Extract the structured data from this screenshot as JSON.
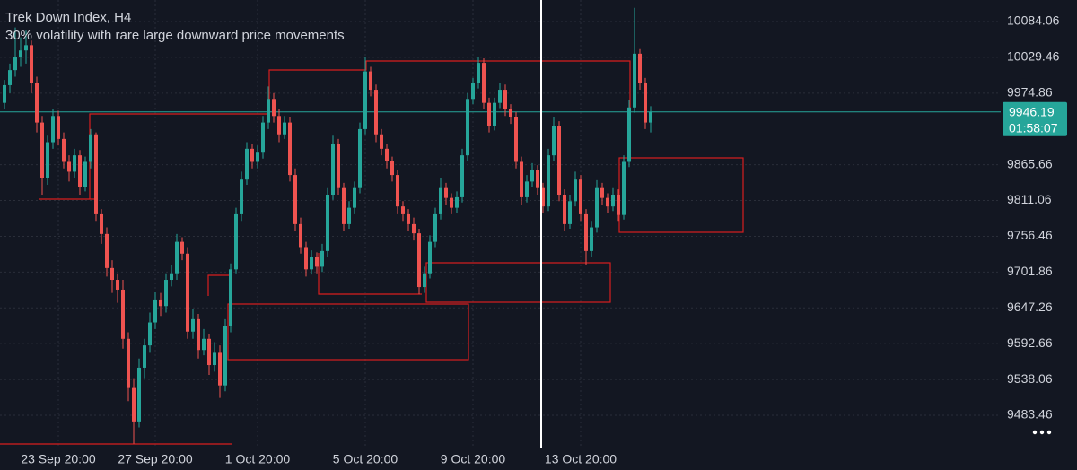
{
  "chart_data": {
    "type": "candlestick",
    "title": "Trek Down Index, H4",
    "subtitle": "30% volatility with rare large downward price movements",
    "up_color": "#26a69a",
    "down_color": "#ef5350",
    "grid": true,
    "ylim": [
      9432.8,
      10116.9
    ],
    "yticks": [
      {
        "value": 10084.06,
        "label": "10084.06"
      },
      {
        "value": 10029.46,
        "label": "10029.46"
      },
      {
        "value": 9974.86,
        "label": "9974.86"
      },
      {
        "value": 9865.66,
        "label": "9865.66"
      },
      {
        "value": 9811.06,
        "label": "9811.06"
      },
      {
        "value": 9756.46,
        "label": "9756.46"
      },
      {
        "value": 9701.86,
        "label": "9701.86"
      },
      {
        "value": 9647.26,
        "label": "9647.26"
      },
      {
        "value": 9592.66,
        "label": "9592.66"
      },
      {
        "value": 9538.06,
        "label": "9538.06"
      },
      {
        "value": 9483.46,
        "label": "9483.46"
      }
    ],
    "last_price": 9946.19,
    "countdown": "01:58:07",
    "categories": [
      null,
      null,
      null,
      null,
      null,
      null,
      null,
      null,
      null,
      null,
      "23 Sep 20:00",
      null,
      null,
      null,
      null,
      null,
      null,
      null,
      null,
      null,
      null,
      null,
      null,
      null,
      null,
      null,
      null,
      null,
      "27 Sep 20:00",
      null,
      null,
      null,
      null,
      null,
      null,
      null,
      null,
      null,
      null,
      null,
      null,
      null,
      null,
      null,
      null,
      null,
      null,
      "1 Oct 20:00",
      null,
      null,
      null,
      null,
      null,
      null,
      null,
      null,
      null,
      null,
      null,
      null,
      null,
      null,
      null,
      null,
      null,
      null,
      null,
      "5 Oct 20:00",
      null,
      null,
      null,
      null,
      null,
      null,
      null,
      null,
      null,
      null,
      null,
      null,
      null,
      null,
      null,
      null,
      null,
      null,
      null,
      "9 Oct 20:00",
      null,
      null,
      null,
      null,
      null,
      null,
      null,
      null,
      null,
      null,
      null,
      null,
      null,
      null,
      null,
      null,
      null,
      null,
      null,
      "13 Oct 20:00",
      null,
      null,
      null,
      null,
      null,
      null,
      null,
      null,
      null,
      null,
      null,
      null,
      null
    ],
    "candles": [
      [
        9960,
        9995,
        9950,
        9987
      ],
      [
        9987,
        10020,
        9975,
        10010
      ],
      [
        10010,
        10075,
        10000,
        10030
      ],
      [
        10030,
        10060,
        10015,
        10040
      ],
      [
        10040,
        10070,
        10020,
        10048
      ],
      [
        10048,
        10055,
        9975,
        9990
      ],
      [
        9990,
        10000,
        9915,
        9930
      ],
      [
        9930,
        9940,
        9820,
        9845
      ],
      [
        9845,
        9910,
        9835,
        9900
      ],
      [
        9900,
        9950,
        9890,
        9940
      ],
      [
        9940,
        9948,
        9895,
        9905
      ],
      [
        9905,
        9915,
        9860,
        9870
      ],
      [
        9870,
        9880,
        9840,
        9855
      ],
      [
        9855,
        9890,
        9845,
        9880
      ],
      [
        9880,
        9888,
        9820,
        9832
      ],
      [
        9832,
        9878,
        9825,
        9870
      ],
      [
        9870,
        9920,
        9860,
        9912
      ],
      [
        9912,
        9915,
        9780,
        9790
      ],
      [
        9790,
        9798,
        9745,
        9760
      ],
      [
        9760,
        9770,
        9695,
        9708
      ],
      [
        9708,
        9720,
        9670,
        9690
      ],
      [
        9690,
        9700,
        9655,
        9675
      ],
      [
        9675,
        9690,
        9585,
        9600
      ],
      [
        9600,
        9610,
        9505,
        9525
      ],
      [
        9525,
        9540,
        9440,
        9474
      ],
      [
        9474,
        9570,
        9465,
        9556
      ],
      [
        9556,
        9600,
        9540,
        9590
      ],
      [
        9590,
        9640,
        9580,
        9625
      ],
      [
        9625,
        9672,
        9615,
        9660
      ],
      [
        9660,
        9670,
        9635,
        9650
      ],
      [
        9650,
        9700,
        9640,
        9690
      ],
      [
        9690,
        9712,
        9680,
        9700
      ],
      [
        9700,
        9760,
        9690,
        9748
      ],
      [
        9748,
        9755,
        9720,
        9730
      ],
      [
        9730,
        9740,
        9600,
        9611
      ],
      [
        9611,
        9645,
        9600,
        9630
      ],
      [
        9630,
        9638,
        9570,
        9583
      ],
      [
        9583,
        9615,
        9575,
        9600
      ],
      [
        9600,
        9608,
        9545,
        9560
      ],
      [
        9560,
        9595,
        9550,
        9580
      ],
      [
        9580,
        9590,
        9510,
        9529
      ],
      [
        9529,
        9630,
        9520,
        9620
      ],
      [
        9620,
        9715,
        9610,
        9706
      ],
      [
        9706,
        9800,
        9700,
        9790
      ],
      [
        9790,
        9855,
        9780,
        9843
      ],
      [
        9843,
        9900,
        9835,
        9890
      ],
      [
        9890,
        9898,
        9860,
        9870
      ],
      [
        9870,
        9895,
        9860,
        9884
      ],
      [
        9884,
        9940,
        9875,
        9930
      ],
      [
        9930,
        9985,
        9920,
        9966
      ],
      [
        9966,
        9975,
        9930,
        9940
      ],
      [
        9940,
        9950,
        9900,
        9912
      ],
      [
        9912,
        9940,
        9905,
        9930
      ],
      [
        9930,
        9938,
        9840,
        9850
      ],
      [
        9850,
        9860,
        9765,
        9775
      ],
      [
        9775,
        9785,
        9730,
        9740
      ],
      [
        9740,
        9748,
        9695,
        9706
      ],
      [
        9706,
        9735,
        9698,
        9725
      ],
      [
        9725,
        9732,
        9700,
        9710
      ],
      [
        9710,
        9745,
        9702,
        9734
      ],
      [
        9734,
        9830,
        9725,
        9820
      ],
      [
        9820,
        9910,
        9812,
        9898
      ],
      [
        9898,
        9905,
        9820,
        9830
      ],
      [
        9830,
        9838,
        9765,
        9775
      ],
      [
        9775,
        9810,
        9768,
        9800
      ],
      [
        9800,
        9840,
        9790,
        9830
      ],
      [
        9830,
        9930,
        9822,
        9920
      ],
      [
        9920,
        10030,
        9912,
        10008
      ],
      [
        10008,
        10015,
        9970,
        9980
      ],
      [
        9980,
        9988,
        9900,
        9912
      ],
      [
        9912,
        9920,
        9880,
        9890
      ],
      [
        9890,
        9898,
        9860,
        9871
      ],
      [
        9871,
        9878,
        9840,
        9850
      ],
      [
        9850,
        9858,
        9790,
        9802
      ],
      [
        9802,
        9810,
        9780,
        9790
      ],
      [
        9790,
        9798,
        9765,
        9775
      ],
      [
        9775,
        9785,
        9750,
        9761
      ],
      [
        9761,
        9768,
        9668,
        9679
      ],
      [
        9679,
        9710,
        9670,
        9700
      ],
      [
        9700,
        9758,
        9692,
        9748
      ],
      [
        9748,
        9800,
        9740,
        9790
      ],
      [
        9790,
        9845,
        9782,
        9830
      ],
      [
        9830,
        9838,
        9805,
        9815
      ],
      [
        9815,
        9822,
        9790,
        9800
      ],
      [
        9800,
        9825,
        9792,
        9816
      ],
      [
        9816,
        9890,
        9808,
        9880
      ],
      [
        9880,
        9975,
        9872,
        9966
      ],
      [
        9966,
        9998,
        9958,
        9990
      ],
      [
        9990,
        10030,
        9982,
        10021
      ],
      [
        10021,
        10028,
        9950,
        9960
      ],
      [
        9960,
        9968,
        9915,
        9925
      ],
      [
        9925,
        9968,
        9918,
        9960
      ],
      [
        9960,
        9990,
        9952,
        9980
      ],
      [
        9980,
        9988,
        9940,
        9950
      ],
      [
        9950,
        9958,
        9928,
        9939
      ],
      [
        9939,
        9946,
        9860,
        9870
      ],
      [
        9870,
        9878,
        9805,
        9816
      ],
      [
        9816,
        9850,
        9808,
        9840
      ],
      [
        9840,
        9868,
        9832,
        9857
      ],
      [
        9857,
        9865,
        9820,
        9830
      ],
      [
        9830,
        9838,
        9792,
        9802
      ],
      [
        9802,
        9890,
        9795,
        9880
      ],
      [
        9880,
        9938,
        9872,
        9925
      ],
      [
        9925,
        9932,
        9810,
        9820
      ],
      [
        9820,
        9828,
        9765,
        9775
      ],
      [
        9775,
        9820,
        9768,
        9810
      ],
      [
        9810,
        9855,
        9802,
        9843
      ],
      [
        9843,
        9850,
        9780,
        9790
      ],
      [
        9790,
        9798,
        9712,
        9734
      ],
      [
        9734,
        9780,
        9725,
        9770
      ],
      [
        9770,
        9842,
        9762,
        9830
      ],
      [
        9830,
        9838,
        9805,
        9815
      ],
      [
        9815,
        9822,
        9792,
        9802
      ],
      [
        9802,
        9830,
        9795,
        9820
      ],
      [
        9820,
        9828,
        9780,
        9789
      ],
      [
        9789,
        9880,
        9782,
        9870
      ],
      [
        9870,
        9965,
        9862,
        9953
      ],
      [
        9953,
        10105,
        9945,
        10035
      ],
      [
        10035,
        10042,
        9980,
        9990
      ],
      [
        9990,
        9998,
        9920,
        9930
      ],
      [
        9930,
        9955,
        9915,
        9946.19
      ]
    ]
  }
}
